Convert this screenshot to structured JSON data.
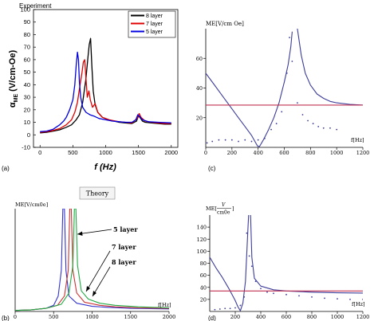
{
  "chart_data": [
    {
      "type": "line",
      "panel_label": "(a)",
      "title": "Experiment",
      "xlabel": "f (Hz)",
      "ylabel": "αME (V/cm-Oe)",
      "ylabel_main": "α",
      "ylabel_sub": "ME",
      "ylabel_rest": " (V/cm-Oe)",
      "xlim": [
        -100,
        2100
      ],
      "ylim": [
        -10,
        100
      ],
      "x_ticks": [
        "0",
        "500",
        "1000",
        "1500",
        "2000"
      ],
      "y_ticks": [
        "-10",
        "0",
        "10",
        "20",
        "30",
        "40",
        "50",
        "60",
        "70",
        "80",
        "90",
        "100"
      ],
      "x_tick_values": [
        0,
        500,
        1000,
        1500,
        2000
      ],
      "y_tick_values": [
        -10,
        0,
        10,
        20,
        30,
        40,
        50,
        60,
        70,
        80,
        90,
        100
      ],
      "legend_position": "top-right",
      "series": [
        {
          "name": "8 layer",
          "color": "#000000",
          "points": [
            [
              0,
              1.5
            ],
            [
              100,
              2
            ],
            [
              200,
              3
            ],
            [
              300,
              4
            ],
            [
              400,
              6
            ],
            [
              480,
              8
            ],
            [
              550,
              12
            ],
            [
              600,
              16
            ],
            [
              650,
              26
            ],
            [
              700,
              45
            ],
            [
              730,
              62
            ],
            [
              750,
              72
            ],
            [
              770,
              77
            ],
            [
              790,
              55
            ],
            [
              810,
              35
            ],
            [
              840,
              24
            ],
            [
              880,
              18
            ],
            [
              950,
              14
            ],
            [
              1050,
              12
            ],
            [
              1200,
              10
            ],
            [
              1300,
              9.5
            ],
            [
              1400,
              9
            ],
            [
              1470,
              11
            ],
            [
              1500,
              15
            ],
            [
              1520,
              14
            ],
            [
              1560,
              11
            ],
            [
              1600,
              10
            ],
            [
              1700,
              9.5
            ],
            [
              1800,
              9
            ],
            [
              1900,
              8.5
            ],
            [
              2000,
              8.5
            ]
          ]
        },
        {
          "name": "7 layer",
          "color": "#e00000",
          "points": [
            [
              0,
              2
            ],
            [
              100,
              2.5
            ],
            [
              200,
              3.5
            ],
            [
              300,
              5
            ],
            [
              400,
              8
            ],
            [
              480,
              12
            ],
            [
              530,
              18
            ],
            [
              570,
              26
            ],
            [
              610,
              40
            ],
            [
              640,
              50
            ],
            [
              660,
              58
            ],
            [
              680,
              60
            ],
            [
              700,
              45
            ],
            [
              720,
              30
            ],
            [
              745,
              35
            ],
            [
              765,
              28
            ],
            [
              800,
              22
            ],
            [
              840,
              25
            ],
            [
              880,
              18
            ],
            [
              950,
              14
            ],
            [
              1050,
              12
            ],
            [
              1200,
              10.5
            ],
            [
              1300,
              10
            ],
            [
              1400,
              9.5
            ],
            [
              1480,
              13
            ],
            [
              1510,
              17
            ],
            [
              1540,
              14
            ],
            [
              1600,
              11
            ],
            [
              1700,
              10
            ],
            [
              1800,
              9.5
            ],
            [
              1900,
              9
            ],
            [
              2000,
              9
            ]
          ]
        },
        {
          "name": "5 layer",
          "color": "#0000e0",
          "points": [
            [
              0,
              2.5
            ],
            [
              100,
              3
            ],
            [
              200,
              4.5
            ],
            [
              300,
              8
            ],
            [
              360,
              11
            ],
            [
              400,
              14
            ],
            [
              450,
              20
            ],
            [
              500,
              28
            ],
            [
              530,
              40
            ],
            [
              550,
              55
            ],
            [
              570,
              66
            ],
            [
              585,
              60
            ],
            [
              600,
              42
            ],
            [
              620,
              30
            ],
            [
              650,
              22
            ],
            [
              700,
              18
            ],
            [
              760,
              16
            ],
            [
              820,
              15
            ],
            [
              900,
              13
            ],
            [
              1000,
              12
            ],
            [
              1100,
              11
            ],
            [
              1200,
              10.5
            ],
            [
              1300,
              10
            ],
            [
              1400,
              10
            ],
            [
              1460,
              12
            ],
            [
              1490,
              16
            ],
            [
              1510,
              15
            ],
            [
              1560,
              12
            ],
            [
              1650,
              10.5
            ],
            [
              1800,
              10
            ],
            [
              2000,
              9.5
            ]
          ]
        }
      ]
    },
    {
      "type": "line",
      "panel_label": "(c)",
      "ylabel": "ME[V/cm Oe]",
      "xlabel": "f[Hz]",
      "xlim": [
        0,
        1200
      ],
      "ylim": [
        0,
        80
      ],
      "x_ticks": [
        "0",
        "200",
        "400",
        "600",
        "800",
        "1000",
        "1200"
      ],
      "y_ticks": [
        "20",
        "40",
        "60"
      ],
      "x_tick_values": [
        0,
        200,
        400,
        600,
        800,
        1000,
        1200
      ],
      "y_tick_values": [
        20,
        40,
        60
      ],
      "series": [
        {
          "color": "#3c3c9a",
          "points": [
            [
              0,
              50
            ],
            [
              50,
              44
            ],
            [
              100,
              38
            ],
            [
              150,
              32
            ],
            [
              200,
              26
            ],
            [
              250,
              20
            ],
            [
              300,
              14
            ],
            [
              350,
              8
            ],
            [
              395,
              1
            ],
            [
              410,
              0.5
            ],
            [
              440,
              5
            ],
            [
              480,
              12
            ],
            [
              520,
              20
            ],
            [
              560,
              30
            ],
            [
              600,
              44
            ],
            [
              630,
              56
            ],
            [
              650,
              68
            ],
            [
              660,
              78
            ]
          ]
        },
        {
          "color": "#3c3c9a",
          "points": [
            [
              700,
              80
            ],
            [
              730,
              62
            ],
            [
              760,
              50
            ],
            [
              800,
              42
            ],
            [
              850,
              36
            ],
            [
              900,
              33
            ],
            [
              950,
              31
            ],
            [
              1000,
              30
            ],
            [
              1100,
              29
            ],
            [
              1200,
              28.5
            ]
          ]
        },
        {
          "color": "#c03050",
          "points": [
            [
              0,
              28.5
            ],
            [
              1200,
              28.5
            ]
          ]
        },
        {
          "color": "#3c3c9a",
          "style": "dots",
          "points": [
            [
              10,
              3
            ],
            [
              50,
              4
            ],
            [
              100,
              5
            ],
            [
              150,
              5
            ],
            [
              200,
              5
            ],
            [
              250,
              4
            ],
            [
              300,
              5
            ],
            [
              350,
              4
            ],
            [
              400,
              5
            ],
            [
              450,
              6
            ],
            [
              500,
              12
            ],
            [
              540,
              16
            ],
            [
              580,
              24
            ],
            [
              620,
              50
            ],
            [
              640,
              74
            ],
            [
              660,
              58
            ],
            [
              700,
              30
            ],
            [
              740,
              22
            ],
            [
              780,
              18
            ],
            [
              820,
              16
            ],
            [
              860,
              14
            ],
            [
              900,
              13
            ],
            [
              950,
              13
            ],
            [
              1000,
              12
            ]
          ]
        }
      ]
    },
    {
      "type": "line",
      "panel_label": "(b)",
      "title": "Theory",
      "ylabel": "ME[V/cm0e]",
      "xlabel": "f[Hz]",
      "xlim": [
        0,
        2000
      ],
      "ylim": [
        0,
        100
      ],
      "x_ticks": [
        "0",
        "500",
        "1000",
        "1500",
        "2000"
      ],
      "x_tick_values": [
        0,
        500,
        1000,
        1500,
        2000
      ],
      "annotations": [
        "5 layer",
        "7 layer",
        "8 layer"
      ],
      "series": [
        {
          "name": "5 layer",
          "color": "#3333cc",
          "points": [
            [
              0,
              1
            ],
            [
              200,
              1.5
            ],
            [
              400,
              3
            ],
            [
              500,
              6
            ],
            [
              560,
              15
            ],
            [
              600,
              40
            ],
            [
              620,
              100
            ],
            [
              640,
              100
            ],
            [
              660,
              40
            ],
            [
              700,
              15
            ],
            [
              800,
              8
            ],
            [
              1000,
              5
            ],
            [
              1200,
              4
            ],
            [
              1500,
              3
            ],
            [
              2000,
              2.5
            ]
          ]
        },
        {
          "name": "7 layer",
          "color": "#cc3333",
          "points": [
            [
              0,
              1
            ],
            [
              200,
              1.5
            ],
            [
              400,
              3
            ],
            [
              550,
              6
            ],
            [
              640,
              15
            ],
            [
              690,
              40
            ],
            [
              710,
              100
            ],
            [
              730,
              100
            ],
            [
              750,
              40
            ],
            [
              800,
              18
            ],
            [
              900,
              9
            ],
            [
              1100,
              6
            ],
            [
              1300,
              4.5
            ],
            [
              1600,
              3.5
            ],
            [
              2000,
              3
            ]
          ]
        },
        {
          "name": "8 layer",
          "color": "#22aa44",
          "points": [
            [
              0,
              1
            ],
            [
              200,
              1.5
            ],
            [
              400,
              3
            ],
            [
              600,
              7
            ],
            [
              700,
              18
            ],
            [
              750,
              45
            ],
            [
              770,
              100
            ],
            [
              790,
              100
            ],
            [
              810,
              45
            ],
            [
              860,
              20
            ],
            [
              950,
              12
            ],
            [
              1100,
              8
            ],
            [
              1300,
              6
            ],
            [
              1600,
              4.5
            ],
            [
              2000,
              3.5
            ]
          ]
        }
      ]
    },
    {
      "type": "line",
      "panel_label": "(d)",
      "ylabel_pre": "ME[",
      "ylabel_num": "V",
      "ylabel_den": "cm0e",
      "ylabel_post": "]",
      "xlabel": "f[Hz]",
      "xlim": [
        0,
        1200
      ],
      "ylim": [
        0,
        160
      ],
      "x_ticks": [
        "200",
        "400",
        "600",
        "800",
        "1000",
        "1200"
      ],
      "y_ticks": [
        "20",
        "40",
        "60",
        "80",
        "100",
        "120",
        "140"
      ],
      "x_tick_values": [
        200,
        400,
        600,
        800,
        1000,
        1200
      ],
      "y_tick_values": [
        20,
        40,
        60,
        80,
        100,
        120,
        140
      ],
      "series": [
        {
          "color": "#3c3c9a",
          "points": [
            [
              0,
              90
            ],
            [
              50,
              72
            ],
            [
              100,
              56
            ],
            [
              150,
              38
            ],
            [
              200,
              18
            ],
            [
              220,
              8
            ],
            [
              240,
              1
            ],
            [
              260,
              14
            ],
            [
              280,
              50
            ],
            [
              300,
              140
            ],
            [
              305,
              160
            ]
          ]
        },
        {
          "color": "#3c3c9a",
          "points": [
            [
              320,
              160
            ],
            [
              330,
              90
            ],
            [
              350,
              55
            ],
            [
              400,
              42
            ],
            [
              500,
              36
            ],
            [
              600,
              34
            ],
            [
              800,
              32
            ],
            [
              1000,
              31
            ],
            [
              1200,
              30.5
            ]
          ]
        },
        {
          "color": "#c03050",
          "points": [
            [
              0,
              34
            ],
            [
              1200,
              34
            ]
          ]
        },
        {
          "color": "#3c3c9a",
          "style": "dots",
          "points": [
            [
              40,
              3
            ],
            [
              80,
              4
            ],
            [
              120,
              5
            ],
            [
              160,
              5
            ],
            [
              200,
              6
            ],
            [
              240,
              10
            ],
            [
              270,
              24
            ],
            [
              290,
              130
            ],
            [
              310,
              92
            ],
            [
              330,
              75
            ],
            [
              360,
              50
            ],
            [
              400,
              38
            ],
            [
              450,
              32
            ],
            [
              500,
              30
            ],
            [
              600,
              28
            ],
            [
              700,
              26
            ],
            [
              800,
              24
            ],
            [
              900,
              22
            ],
            [
              1000,
              21
            ],
            [
              1100,
              20
            ],
            [
              1200,
              20
            ]
          ]
        }
      ]
    }
  ]
}
